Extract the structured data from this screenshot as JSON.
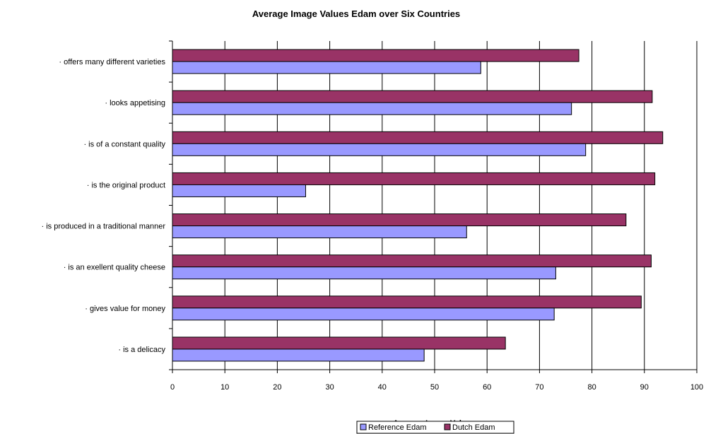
{
  "chart_data": {
    "type": "bar",
    "orientation": "horizontal",
    "title": "Average Image Values Edam over Six Countries",
    "xlabel": "Average Image Values",
    "ylabel": "",
    "xlim": [
      0,
      100
    ],
    "xticks": [
      "0",
      "10",
      "20",
      "30",
      "40",
      "50",
      "60",
      "70",
      "80",
      "90",
      "100"
    ],
    "grid": "vertical",
    "legend_position": "bottom",
    "categories": [
      "· offers many different varieties",
      "· looks appetising",
      "· is of a constant quality",
      "· is the original product",
      "· is produced in a traditional manner",
      "· is an exellent quality cheese",
      "· gives value for money",
      "· is a delicacy"
    ],
    "series": [
      {
        "name": "Reference Edam",
        "color": "#9999ff",
        "values": [
          58.8,
          76.1,
          78.8,
          25.4,
          56.1,
          73.1,
          72.8,
          48.0
        ]
      },
      {
        "name": "Dutch Edam",
        "color": "#993366",
        "values": [
          77.5,
          91.5,
          93.5,
          92.0,
          86.5,
          91.3,
          89.4,
          63.5
        ]
      }
    ]
  }
}
